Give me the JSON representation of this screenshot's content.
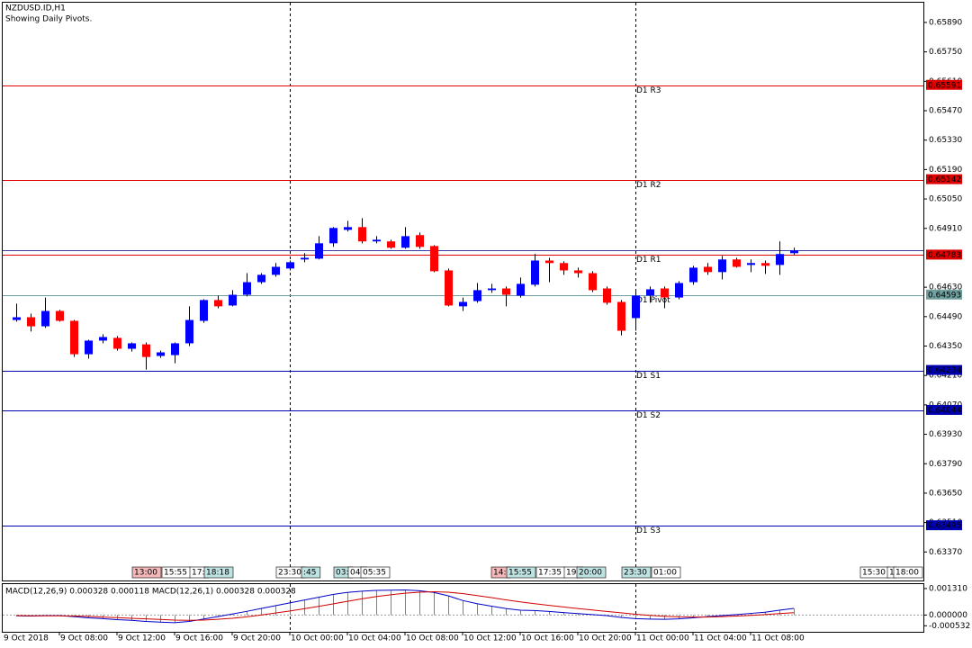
{
  "chart_data": [
    {
      "type": "candlestick",
      "title": "NZDUSD.ID,H1",
      "subtitle": "Showing Daily Pivots.",
      "up_color": "#0000ff",
      "down_color": "#ff0000",
      "ylim": [
        0.6323,
        0.65984
      ],
      "yticks": [
        {
          "value": 0.6589,
          "label": "0.65890"
        },
        {
          "value": 0.6575,
          "label": "0.65750"
        },
        {
          "value": 0.6561,
          "label": "0.65610"
        },
        {
          "value": 0.6547,
          "label": "0.65470"
        },
        {
          "value": 0.6533,
          "label": "0.65330"
        },
        {
          "value": 0.6519,
          "label": "0.65190"
        },
        {
          "value": 0.6505,
          "label": "0.65050"
        },
        {
          "value": 0.6491,
          "label": "0.64910"
        },
        {
          "value": 0.6463,
          "label": "0.64630"
        },
        {
          "value": 0.6449,
          "label": "0.64490"
        },
        {
          "value": 0.6435,
          "label": "0.64350"
        },
        {
          "value": 0.6421,
          "label": "0.64210"
        },
        {
          "value": 0.6407,
          "label": "0.64070"
        },
        {
          "value": 0.6393,
          "label": "0.63930"
        },
        {
          "value": 0.6379,
          "label": "0.63790"
        },
        {
          "value": 0.6365,
          "label": "0.63650"
        },
        {
          "value": 0.6351,
          "label": "0.63510"
        },
        {
          "value": 0.6337,
          "label": "0.63370"
        }
      ],
      "x_start_label": "9 Oct 2018",
      "categories": [
        null,
        null,
        null,
        "9 Oct 08:00",
        null,
        null,
        null,
        "9 Oct 12:00",
        null,
        null,
        null,
        "9 Oct 16:00",
        null,
        null,
        null,
        "9 Oct 20:00",
        null,
        null,
        null,
        "10 Oct 00:00",
        null,
        null,
        null,
        "10 Oct 04:00",
        null,
        null,
        null,
        "10 Oct 08:00",
        null,
        null,
        null,
        "10 Oct 12:00",
        null,
        null,
        null,
        "10 Oct 16:00",
        null,
        null,
        null,
        "10 Oct 20:00",
        null,
        null,
        null,
        "11 Oct 00:00",
        null,
        null,
        null,
        "11 Oct 04:00",
        null,
        null,
        null,
        "11 Oct 08:00",
        null,
        null,
        null
      ],
      "ohlc": [
        [
          0.64474,
          0.64552,
          0.64466,
          0.64487
        ],
        [
          0.64487,
          0.64504,
          0.64419,
          0.64444
        ],
        [
          0.64444,
          0.64581,
          0.64436,
          0.64517
        ],
        [
          0.64517,
          0.64522,
          0.64466,
          0.6447
        ],
        [
          0.6447,
          0.64474,
          0.64298,
          0.64311
        ],
        [
          0.64311,
          0.6438,
          0.6429,
          0.64376
        ],
        [
          0.64376,
          0.64406,
          0.64363,
          0.64393
        ],
        [
          0.64389,
          0.64397,
          0.64328,
          0.64337
        ],
        [
          0.64337,
          0.64367,
          0.64324,
          0.64363
        ],
        [
          0.64358,
          0.64367,
          0.64238,
          0.64298
        ],
        [
          0.64303,
          0.64328,
          0.64294,
          0.6432
        ],
        [
          0.64307,
          0.64367,
          0.64268,
          0.64363
        ],
        [
          0.64363,
          0.64539,
          0.6435,
          0.64474
        ],
        [
          0.6447,
          0.64573,
          0.64461,
          0.64569
        ],
        [
          0.64569,
          0.6459,
          0.6453,
          0.64539
        ],
        [
          0.64543,
          0.64616,
          0.64539,
          0.64594
        ],
        [
          0.64594,
          0.64697,
          0.64586,
          0.64654
        ],
        [
          0.64654,
          0.64697,
          0.64646,
          0.64689
        ],
        [
          0.64689,
          0.64745,
          0.6468,
          0.64727
        ],
        [
          0.64719,
          0.64757,
          0.6471,
          0.64749
        ],
        [
          0.64762,
          0.64792,
          0.64749,
          0.6477
        ],
        [
          0.64766,
          0.64873,
          0.64762,
          0.64839
        ],
        [
          0.64839,
          0.64916,
          0.64822,
          0.64912
        ],
        [
          0.64903,
          0.64946,
          0.64895,
          0.64916
        ],
        [
          0.64916,
          0.64959,
          0.64839,
          0.64848
        ],
        [
          0.64848,
          0.64873,
          0.64839,
          0.64856
        ],
        [
          0.64848,
          0.64856,
          0.64813,
          0.64818
        ],
        [
          0.64818,
          0.64916,
          0.64813,
          0.64873
        ],
        [
          0.64878,
          0.6489,
          0.64813,
          0.64822
        ],
        [
          0.64826,
          0.6483,
          0.64702,
          0.64706
        ],
        [
          0.6471,
          0.64719,
          0.64539,
          0.64543
        ],
        [
          0.64539,
          0.64581,
          0.64517,
          0.6456
        ],
        [
          0.64564,
          0.6465,
          0.64556,
          0.64616
        ],
        [
          0.64616,
          0.64646,
          0.64603,
          0.64624
        ],
        [
          0.64624,
          0.64633,
          0.64539,
          0.64594
        ],
        [
          0.6459,
          0.64676,
          0.64581,
          0.64646
        ],
        [
          0.64642,
          0.64788,
          0.64633,
          0.64757
        ],
        [
          0.64757,
          0.6477,
          0.64654,
          0.64745
        ],
        [
          0.64745,
          0.64753,
          0.64689,
          0.6471
        ],
        [
          0.6471,
          0.64723,
          0.64676,
          0.64697
        ],
        [
          0.64697,
          0.64706,
          0.64607,
          0.64616
        ],
        [
          0.64624,
          0.64633,
          0.64547,
          0.64556
        ],
        [
          0.6456,
          0.64569,
          0.64401,
          0.64423
        ],
        [
          0.64483,
          0.64616,
          0.64423,
          0.6459
        ],
        [
          0.6459,
          0.64633,
          0.64556,
          0.6462
        ],
        [
          0.64624,
          0.64633,
          0.6453,
          0.64581
        ],
        [
          0.64581,
          0.64659,
          0.64573,
          0.6465
        ],
        [
          0.64654,
          0.64732,
          0.64642,
          0.64723
        ],
        [
          0.64727,
          0.64745,
          0.64689,
          0.64702
        ],
        [
          0.64702,
          0.64779,
          0.64667,
          0.64762
        ],
        [
          0.64762,
          0.6477,
          0.64723,
          0.64727
        ],
        [
          0.64736,
          0.64762,
          0.64702,
          0.64745
        ],
        [
          0.64745,
          0.64757,
          0.64693,
          0.64732
        ],
        [
          0.64736,
          0.64848,
          0.64689,
          0.64788
        ],
        [
          0.64792,
          0.64818,
          0.64783,
          0.64805
        ]
      ],
      "bid": {
        "value": 0.64805,
        "color": "#3c3ca8"
      },
      "pivots": [
        {
          "name": "D1 R3",
          "value": 0.65591,
          "color": "#e00000"
        },
        {
          "name": "D1 R2",
          "value": 0.65142,
          "color": "#e00000"
        },
        {
          "name": "D1 R1",
          "value": 0.64783,
          "color": "#e00000"
        },
        {
          "name": "D1 Pivot",
          "value": 0.64593,
          "color": "#6f9f9f"
        },
        {
          "name": "D1 S1",
          "value": 0.64234,
          "color": "#0000b0"
        },
        {
          "name": "D1 S2",
          "value": 0.64044,
          "color": "#0000b0"
        },
        {
          "name": "D1 S3",
          "value": 0.63495,
          "color": "#0000b0"
        }
      ],
      "time_tags": [
        "13:00",
        "15:55",
        "17:",
        "18:18",
        "23:30",
        ":45",
        "03:",
        "04:",
        "05:35",
        "14:",
        "15:55",
        "17:35",
        "19:",
        "20:00",
        "23:30",
        "01:00",
        "15:30",
        "1",
        "18:00"
      ]
    },
    {
      "type": "macd",
      "title": "MACD(12,26,9) 0.000328 0.000118 MACD(12,26,1) 0.000328 0.000328",
      "ylim": [
        -0.00083,
        0.00153
      ],
      "yticks": [
        {
          "value": 0.00131,
          "label": "0.001310"
        },
        {
          "value": 0,
          "label": "0.000000"
        },
        {
          "value": -0.000532,
          "label": "-0.000532"
        }
      ],
      "series": [
        {
          "color": "#0000c8",
          "values": [
            -4e-05,
            -5e-05,
            -3e-05,
            -3e-05,
            -8e-05,
            -0.00014,
            -0.00018,
            -0.00023,
            -0.00026,
            -0.00032,
            -0.00035,
            -0.00038,
            -0.00032,
            -0.0002,
            -8e-05,
            5e-05,
            0.00018,
            0.00032,
            0.00046,
            0.0006,
            0.00074,
            0.00088,
            0.00102,
            0.00112,
            0.00118,
            0.00122,
            0.00123,
            0.00124,
            0.0012,
            0.00112,
            0.00095,
            0.00072,
            0.00056,
            0.00044,
            0.00032,
            0.00024,
            0.00022,
            0.00018,
            0.00012,
            7e-05,
            2e-05,
            -3e-05,
            -0.00012,
            -0.00018,
            -0.0002,
            -0.00021,
            -0.00019,
            -0.00014,
            -8e-05,
            -3e-05,
            2e-05,
            8e-05,
            0.00014,
            0.00024,
            0.000328
          ]
        },
        {
          "color": "#d00000",
          "values": [
            -3e-05,
            -4e-05,
            -4e-05,
            -4e-05,
            -5e-05,
            -7e-05,
            -0.0001,
            -0.00013,
            -0.00016,
            -0.00019,
            -0.00022,
            -0.00025,
            -0.00026,
            -0.00025,
            -0.00021,
            -0.00016,
            -9e-05,
            0,
            0.0001,
            0.0002,
            0.00031,
            0.00043,
            0.00055,
            0.00068,
            0.0008,
            0.00091,
            0.001,
            0.00108,
            0.00113,
            0.00115,
            0.00113,
            0.00106,
            0.00096,
            0.00086,
            0.00075,
            0.00065,
            0.00056,
            0.00048,
            0.0004,
            0.00032,
            0.00025,
            0.00018,
            0.00011,
            4e-05,
            -2e-05,
            -6e-05,
            -9e-05,
            -0.0001,
            -0.0001,
            -8e-05,
            -5e-05,
            -2e-05,
            2e-05,
            7e-05,
            0.000118
          ]
        }
      ]
    }
  ]
}
